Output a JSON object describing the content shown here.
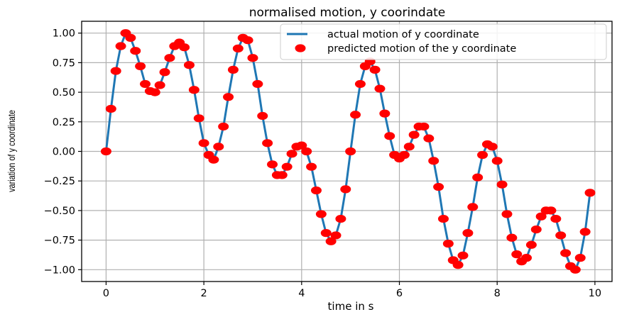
{
  "chart_data": {
    "type": "line",
    "title": "normalised motion, y coorindate",
    "xlabel": "time in s",
    "ylabel": "variation of y coordinate",
    "xlim": [
      -0.5,
      10.35
    ],
    "ylim": [
      -1.1,
      1.1
    ],
    "xticks": [
      0,
      2,
      4,
      6,
      8,
      10
    ],
    "xtick_labels": [
      "0",
      "2",
      "4",
      "6",
      "8",
      "10"
    ],
    "yticks": [
      -1.0,
      -0.75,
      -0.5,
      -0.25,
      0.0,
      0.25,
      0.5,
      0.75,
      1.0
    ],
    "ytick_labels": [
      "−1.00",
      "−0.75",
      "−0.50",
      "−0.25",
      "0.00",
      "0.25",
      "0.50",
      "0.75",
      "1.00"
    ],
    "grid": true,
    "legend_position": "top-right",
    "series": [
      {
        "name": "actual motion of y coordinate",
        "style": "line",
        "color": "#1f77b4",
        "x": [
          0.0,
          0.1,
          0.2,
          0.3,
          0.4,
          0.5,
          0.6,
          0.7,
          0.8,
          0.9,
          1.0,
          1.1,
          1.2,
          1.3,
          1.4,
          1.5,
          1.6,
          1.7,
          1.8,
          1.9,
          2.0,
          2.1,
          2.2,
          2.3,
          2.4,
          2.5,
          2.6,
          2.7,
          2.8,
          2.9,
          3.0,
          3.1,
          3.2,
          3.3,
          3.4,
          3.5,
          3.6,
          3.7,
          3.8,
          3.9,
          4.0,
          4.1,
          4.2,
          4.3,
          4.4,
          4.5,
          4.6,
          4.7,
          4.8,
          4.9,
          5.0,
          5.1,
          5.2,
          5.3,
          5.4,
          5.5,
          5.6,
          5.7,
          5.8,
          5.9,
          6.0,
          6.1,
          6.2,
          6.3,
          6.4,
          6.5,
          6.6,
          6.7,
          6.8,
          6.9,
          7.0,
          7.1,
          7.2,
          7.3,
          7.4,
          7.5,
          7.6,
          7.7,
          7.8,
          7.9,
          8.0,
          8.1,
          8.2,
          8.3,
          8.4,
          8.5,
          8.6,
          8.7,
          8.8,
          8.9,
          9.0,
          9.1,
          9.2,
          9.3,
          9.4,
          9.5,
          9.6,
          9.7,
          9.8,
          9.9
        ],
        "y": [
          0.0,
          0.36,
          0.68,
          0.89,
          1.0,
          0.96,
          0.85,
          0.72,
          0.57,
          0.51,
          0.5,
          0.56,
          0.67,
          0.79,
          0.89,
          0.92,
          0.88,
          0.73,
          0.52,
          0.28,
          0.07,
          -0.03,
          -0.07,
          0.04,
          0.21,
          0.46,
          0.69,
          0.87,
          0.96,
          0.94,
          0.79,
          0.57,
          0.3,
          0.07,
          -0.11,
          -0.2,
          -0.2,
          -0.13,
          -0.02,
          0.04,
          0.05,
          0.0,
          -0.13,
          -0.33,
          -0.53,
          -0.69,
          -0.76,
          -0.71,
          -0.57,
          -0.32,
          0.0,
          0.31,
          0.57,
          0.72,
          0.76,
          0.69,
          0.53,
          0.32,
          0.13,
          -0.03,
          -0.06,
          -0.03,
          0.04,
          0.14,
          0.21,
          0.21,
          0.11,
          -0.08,
          -0.3,
          -0.57,
          -0.78,
          -0.92,
          -0.96,
          -0.88,
          -0.69,
          -0.47,
          -0.22,
          -0.03,
          0.06,
          0.04,
          -0.08,
          -0.28,
          -0.53,
          -0.73,
          -0.87,
          -0.93,
          -0.9,
          -0.79,
          -0.66,
          -0.55,
          -0.5,
          -0.5,
          -0.57,
          -0.71,
          -0.86,
          -0.97,
          -1.0,
          -0.9,
          -0.68,
          -0.35
        ]
      },
      {
        "name": "predicted motion of the y coordinate",
        "style": "markers",
        "color": "#ff0000",
        "x": [
          0.0,
          0.1,
          0.2,
          0.3,
          0.4,
          0.5,
          0.6,
          0.7,
          0.8,
          0.9,
          1.0,
          1.1,
          1.2,
          1.3,
          1.4,
          1.5,
          1.6,
          1.7,
          1.8,
          1.9,
          2.0,
          2.1,
          2.2,
          2.3,
          2.4,
          2.5,
          2.6,
          2.7,
          2.8,
          2.9,
          3.0,
          3.1,
          3.2,
          3.3,
          3.4,
          3.5,
          3.6,
          3.7,
          3.8,
          3.9,
          4.0,
          4.1,
          4.2,
          4.3,
          4.4,
          4.5,
          4.6,
          4.7,
          4.8,
          4.9,
          5.0,
          5.1,
          5.2,
          5.3,
          5.4,
          5.5,
          5.6,
          5.7,
          5.8,
          5.9,
          6.0,
          6.1,
          6.2,
          6.3,
          6.4,
          6.5,
          6.6,
          6.7,
          6.8,
          6.9,
          7.0,
          7.1,
          7.2,
          7.3,
          7.4,
          7.5,
          7.6,
          7.7,
          7.8,
          7.9,
          8.0,
          8.1,
          8.2,
          8.3,
          8.4,
          8.5,
          8.6,
          8.7,
          8.8,
          8.9,
          9.0,
          9.1,
          9.2,
          9.3,
          9.4,
          9.5,
          9.6,
          9.7,
          9.8,
          9.9
        ],
        "y": [
          0.0,
          0.36,
          0.68,
          0.89,
          1.0,
          0.96,
          0.85,
          0.72,
          0.57,
          0.51,
          0.5,
          0.56,
          0.67,
          0.79,
          0.89,
          0.92,
          0.88,
          0.73,
          0.52,
          0.28,
          0.07,
          -0.03,
          -0.07,
          0.04,
          0.21,
          0.46,
          0.69,
          0.87,
          0.96,
          0.94,
          0.79,
          0.57,
          0.3,
          0.07,
          -0.11,
          -0.2,
          -0.2,
          -0.13,
          -0.02,
          0.04,
          0.05,
          0.0,
          -0.13,
          -0.33,
          -0.53,
          -0.69,
          -0.76,
          -0.71,
          -0.57,
          -0.32,
          0.0,
          0.31,
          0.57,
          0.72,
          0.76,
          0.69,
          0.53,
          0.32,
          0.13,
          -0.03,
          -0.06,
          -0.03,
          0.04,
          0.14,
          0.21,
          0.21,
          0.11,
          -0.08,
          -0.3,
          -0.57,
          -0.78,
          -0.92,
          -0.96,
          -0.88,
          -0.69,
          -0.47,
          -0.22,
          -0.03,
          0.06,
          0.04,
          -0.08,
          -0.28,
          -0.53,
          -0.73,
          -0.87,
          -0.93,
          -0.9,
          -0.79,
          -0.66,
          -0.55,
          -0.5,
          -0.5,
          -0.57,
          -0.71,
          -0.86,
          -0.97,
          -1.0,
          -0.9,
          -0.68,
          -0.35
        ]
      }
    ]
  }
}
